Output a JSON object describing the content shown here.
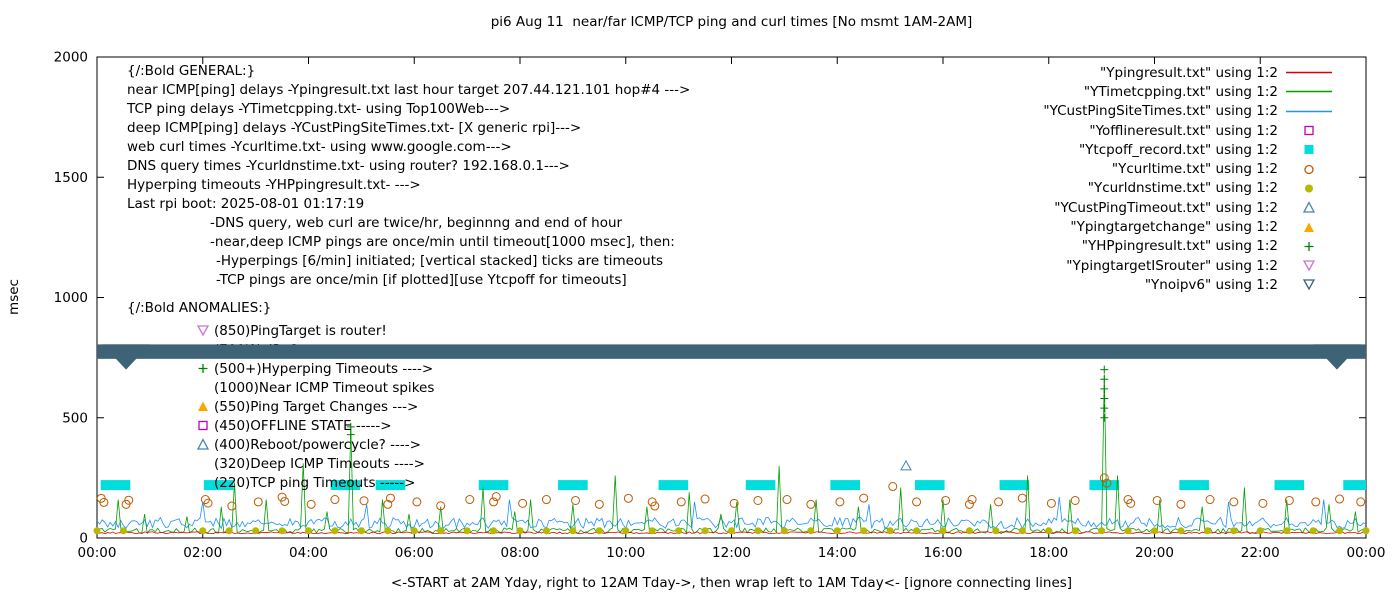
{
  "title": "pi6 Aug 11  near/far ICMP/TCP ping and curl times [No msmt 1AM-2AM]",
  "legend": {
    "items": [
      {
        "label": "\"Ypingresult.txt\" using 1:2",
        "marker": "line",
        "color": "#dd0000"
      },
      {
        "label": "\"YTimetcpping.txt\" using 1:2",
        "marker": "line",
        "color": "#00a000"
      },
      {
        "label": "\"YCustPingSiteTimes.txt\" using 1:2",
        "marker": "line",
        "color": "#1e90ff"
      },
      {
        "label": "\"Yofflineresult.txt\" using 1:2",
        "marker": "square-open",
        "color": "#bf00bf"
      },
      {
        "label": "\"Ytcpoff_record.txt\" using 1:2",
        "marker": "square-filled",
        "color": "#00dddd"
      },
      {
        "label": "\"Ycurltime.txt\" using 1:2",
        "marker": "circle-open",
        "color": "#c05a00"
      },
      {
        "label": "\"Ycurldnstime.txt\" using 1:2",
        "marker": "circle-filled",
        "color": "#b8b800"
      },
      {
        "label": "\"YCustPingTimeout.txt\" using 1:2",
        "marker": "triangle-open",
        "color": "#4682b4"
      },
      {
        "label": "\"Ypingtargetchange\" using 1:2",
        "marker": "triangle-filled",
        "color": "#ffa500"
      },
      {
        "label": "\"YHPpingresult.txt\" using 1:2",
        "marker": "plus",
        "color": "#008000"
      },
      {
        "label": "\"YpingtargetISrouter\" using 1:2",
        "marker": "nabla-open",
        "color": "#d070d8"
      },
      {
        "label": "\"Ynoipv6\" using 1:2",
        "marker": "nabla-open",
        "color": "#3e6276"
      }
    ]
  },
  "annotations": {
    "general": [
      "{/:Bold GENERAL:}",
      "near ICMP[ping] delays -Ypingresult.txt last hour target 207.44.121.101 hop#4 --->",
      "TCP ping delays -YTimetcpping.txt- using Top100Web--->",
      "deep ICMP[ping] delays -YCustPingSiteTimes.txt- [X generic rpi]--->",
      "web curl times -Ycurltime.txt- using www.google.com--->",
      "DNS query times -Ycurldnstime.txt- using router? 192.168.0.1--->",
      "Hyperping timeouts -YHPpingresult.txt- --->",
      "Last rpi boot: 2025-08-01 01:17:19"
    ],
    "notes": [
      "-DNS query, web curl are twice/hr, beginnng and end of hour",
      "-near,deep ICMP pings are once/min until timeout[1000 msec], then:",
      "-Hyperpings [6/min] initiated; [vertical stacked] ticks are timeouts",
      "-TCP pings are once/min [if plotted][use Ytcpoff for timeouts]"
    ],
    "anomalies_title": "{/:Bold ANOMALIES:}",
    "anomalies": [
      {
        "label": "(850)PingTarget is router!",
        "marker": "nabla-open",
        "color": "#d070d8"
      },
      {
        "label": "(700)NoIPv6 ---->",
        "marker": "none",
        "color": ""
      },
      {
        "label": "(500+)Hyperping Timeouts ---->",
        "marker": "plus",
        "color": "#008000"
      },
      {
        "label": "(1000)Near ICMP Timeout spikes",
        "marker": "none",
        "color": ""
      },
      {
        "label": "(550)Ping Target Changes --->",
        "marker": "triangle-filled",
        "color": "#ffa500"
      },
      {
        "label": "(450)OFFLINE STATE ----->",
        "marker": "square-open",
        "color": "#bf00bf"
      },
      {
        "label": "(400)Reboot/powercycle? ---->",
        "marker": "triangle-open",
        "color": "#4682b4"
      },
      {
        "label": "(320)Deep ICMP Timeouts ---->",
        "marker": "none",
        "color": ""
      },
      {
        "label": "(220)TCP ping Timeouts ----->",
        "marker": "none",
        "color": ""
      }
    ]
  },
  "chart_data": {
    "type": "line",
    "title": "pi6 Aug 11  near/far ICMP/TCP ping and curl times [No msmt 1AM-2AM]",
    "xlabel": "<-START at 2AM Yday, right to 12AM Tday->, then wrap left to 1AM Tday<- [ignore connecting lines]",
    "ylabel": "msec",
    "ylim": [
      0,
      2000
    ],
    "x_hours": [
      0,
      24
    ],
    "grid": false,
    "legend_position": "top-right",
    "x_ticks": [
      "00:00",
      "02:00",
      "04:00",
      "06:00",
      "08:00",
      "10:00",
      "12:00",
      "14:00",
      "16:00",
      "18:00",
      "20:00",
      "22:00",
      "00:00"
    ],
    "y_ticks": [
      0,
      500,
      1000,
      1500,
      2000
    ],
    "series": [
      {
        "name": "Ypingresult.txt",
        "kind": "noisy_line",
        "color": "#dd0000",
        "baseline": 18,
        "noise": 8,
        "seed": 101,
        "spikes": []
      },
      {
        "name": "YTimetcpping.txt",
        "kind": "noisy_line",
        "color": "#00a000",
        "baseline": 20,
        "noise": 22,
        "seed": 202,
        "spikes": [
          [
            0.4,
            160
          ],
          [
            0.9,
            100
          ],
          [
            1.7,
            90
          ],
          [
            2.35,
            130
          ],
          [
            2.6,
            230
          ],
          [
            3.2,
            160
          ],
          [
            3.9,
            310
          ],
          [
            4.35,
            110
          ],
          [
            4.8,
            460
          ],
          [
            5.4,
            160
          ],
          [
            5.9,
            100
          ],
          [
            6.5,
            130
          ],
          [
            7.3,
            210
          ],
          [
            7.9,
            110
          ],
          [
            8.2,
            160
          ],
          [
            9.0,
            140
          ],
          [
            9.8,
            260
          ],
          [
            10.4,
            130
          ],
          [
            11.2,
            190
          ],
          [
            11.8,
            100
          ],
          [
            12.1,
            150
          ],
          [
            12.9,
            300
          ],
          [
            13.6,
            160
          ],
          [
            14.4,
            130
          ],
          [
            15.2,
            210
          ],
          [
            16.0,
            160
          ],
          [
            16.9,
            140
          ],
          [
            17.6,
            260
          ],
          [
            18.4,
            160
          ],
          [
            19.05,
            680
          ],
          [
            19.3,
            260
          ],
          [
            20.1,
            160
          ],
          [
            20.9,
            130
          ],
          [
            21.7,
            210
          ],
          [
            22.5,
            160
          ],
          [
            23.3,
            140
          ],
          [
            23.8,
            110
          ]
        ]
      },
      {
        "name": "YCustPingSiteTimes.txt",
        "kind": "noisy_line",
        "color": "#1e90ff",
        "baseline": 40,
        "noise": 45,
        "seed": 303,
        "spikes": [
          [
            2.0,
            150
          ],
          [
            5.1,
            140
          ],
          [
            7.8,
            160
          ],
          [
            11.3,
            150
          ],
          [
            14.6,
            140
          ],
          [
            18.2,
            170
          ],
          [
            21.4,
            150
          ],
          [
            23.2,
            160
          ]
        ]
      },
      {
        "name": "Ytcpoff_record.txt",
        "kind": "bars",
        "color": "#00dddd",
        "y": 220,
        "half_width_hours": 0.28,
        "centers": [
          0.35,
          2.3,
          4.7,
          5.55,
          7.5,
          9.0,
          10.9,
          12.55,
          14.15,
          15.75,
          17.35,
          19.05,
          20.75,
          22.55,
          23.85
        ]
      },
      {
        "name": "Ycurltime.txt",
        "kind": "points",
        "marker": "circle-open",
        "color": "#c05a00",
        "points": [
          [
            0.08,
            165
          ],
          [
            0.13,
            148
          ],
          [
            0.55,
            140
          ],
          [
            0.6,
            157
          ],
          [
            2.05,
            160
          ],
          [
            2.1,
            145
          ],
          [
            2.55,
            133
          ],
          [
            3.05,
            150
          ],
          [
            3.5,
            170
          ],
          [
            3.55,
            152
          ],
          [
            4.05,
            140
          ],
          [
            4.5,
            160
          ],
          [
            5.05,
            155
          ],
          [
            5.5,
            140
          ],
          [
            5.55,
            166
          ],
          [
            6.05,
            150
          ],
          [
            6.5,
            134
          ],
          [
            7.05,
            160
          ],
          [
            7.5,
            150
          ],
          [
            7.55,
            172
          ],
          [
            8.05,
            144
          ],
          [
            8.5,
            160
          ],
          [
            9.05,
            156
          ],
          [
            9.5,
            140
          ],
          [
            10.05,
            165
          ],
          [
            10.5,
            150
          ],
          [
            10.55,
            133
          ],
          [
            11.05,
            150
          ],
          [
            11.5,
            162
          ],
          [
            12.05,
            144
          ],
          [
            12.5,
            156
          ],
          [
            13.05,
            160
          ],
          [
            13.5,
            140
          ],
          [
            14.05,
            150
          ],
          [
            14.5,
            166
          ],
          [
            15.05,
            214
          ],
          [
            15.5,
            150
          ],
          [
            16.05,
            156
          ],
          [
            16.5,
            140
          ],
          [
            16.55,
            160
          ],
          [
            17.05,
            150
          ],
          [
            17.5,
            166
          ],
          [
            18.05,
            144
          ],
          [
            18.5,
            156
          ],
          [
            19.05,
            250
          ],
          [
            19.1,
            228
          ],
          [
            19.5,
            160
          ],
          [
            19.55,
            144
          ],
          [
            20.05,
            156
          ],
          [
            20.5,
            140
          ],
          [
            21.05,
            160
          ],
          [
            21.5,
            150
          ],
          [
            22.05,
            144
          ],
          [
            22.55,
            156
          ],
          [
            23.05,
            150
          ],
          [
            23.5,
            162
          ],
          [
            23.9,
            150
          ]
        ]
      },
      {
        "name": "Ycurldnstime.txt",
        "kind": "points_y",
        "marker": "circle-filled",
        "color": "#b8b800",
        "y": 30,
        "xs": [
          0,
          0.5,
          2,
          2.5,
          3,
          3.5,
          4,
          4.5,
          5,
          5.5,
          6,
          6.5,
          7,
          7.5,
          8,
          8.5,
          9,
          9.5,
          10,
          10.5,
          11,
          11.5,
          12,
          12.5,
          13,
          13.5,
          14,
          14.5,
          15,
          15.5,
          16,
          16.5,
          17,
          17.5,
          18,
          18.5,
          19,
          19.5,
          20,
          20.5,
          21,
          21.5,
          22,
          22.5,
          23,
          23.5,
          24
        ]
      },
      {
        "name": "YHPpingresult.txt",
        "kind": "points",
        "marker": "plus",
        "color": "#008000",
        "points": [
          [
            4.8,
            430
          ],
          [
            4.8,
            462
          ],
          [
            19.05,
            500
          ],
          [
            19.05,
            540
          ],
          [
            19.05,
            580
          ],
          [
            19.05,
            620
          ],
          [
            19.05,
            660
          ],
          [
            19.05,
            700
          ]
        ]
      },
      {
        "name": "YCustPingTimeout.txt",
        "kind": "points",
        "marker": "triangle-open",
        "color": "#4682b4",
        "points": [
          [
            15.3,
            300
          ]
        ]
      },
      {
        "name": "Ynoipv6",
        "kind": "band",
        "color": "#3e6276",
        "y_top": 805,
        "y_bottom": 745,
        "dip_centers": [
          0.55,
          23.45
        ],
        "dip_half_width": 0.45,
        "dip_apex": 700
      }
    ]
  }
}
